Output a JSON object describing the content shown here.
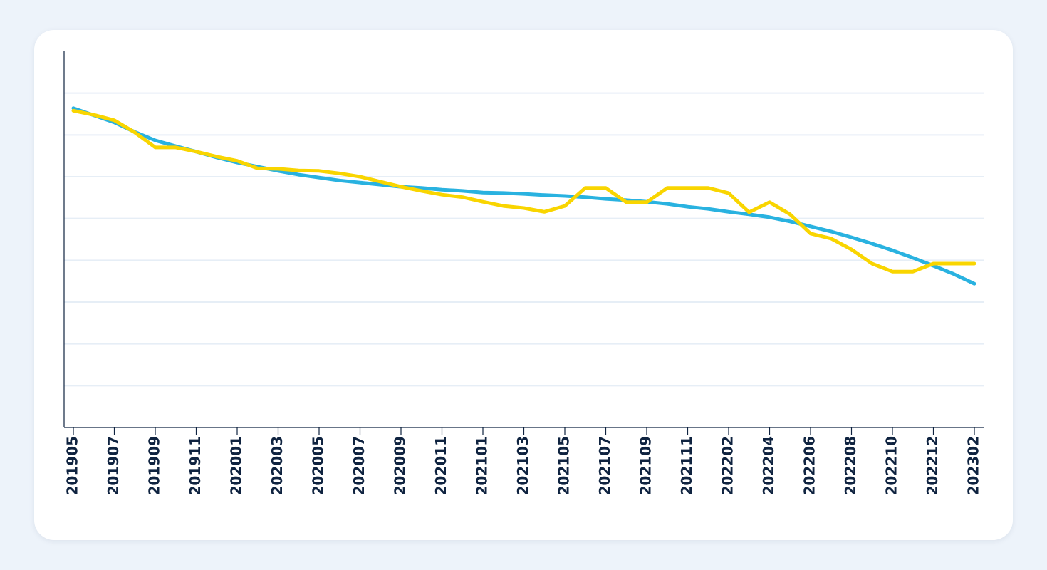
{
  "chart_data": {
    "type": "line",
    "categories": [
      "201905",
      null,
      "201907",
      null,
      "201909",
      null,
      "201911",
      null,
      "202001",
      null,
      "202003",
      null,
      "202005",
      null,
      "202007",
      null,
      "202009",
      null,
      "202011",
      null,
      "202101",
      null,
      "202103",
      null,
      "202105",
      null,
      "202107",
      null,
      "202109",
      null,
      "202111",
      null,
      "202202",
      null,
      "202204",
      null,
      "202206",
      null,
      "202208",
      null,
      "202210",
      null,
      "202212",
      null,
      "202302"
    ],
    "series": [
      {
        "color": "#29b2e0",
        "values": [
          7.64,
          7.47,
          7.3,
          7.07,
          6.87,
          6.73,
          6.6,
          6.46,
          6.34,
          6.24,
          6.14,
          6.05,
          5.98,
          5.91,
          5.86,
          5.81,
          5.76,
          5.73,
          5.69,
          5.66,
          5.62,
          5.61,
          5.59,
          5.56,
          5.54,
          5.51,
          5.47,
          5.44,
          5.4,
          5.35,
          5.28,
          5.23,
          5.16,
          5.1,
          5.03,
          4.93,
          4.81,
          4.69,
          4.55,
          4.4,
          4.24,
          4.06,
          3.87,
          3.67,
          3.44
        ]
      },
      {
        "color": "#f9d500",
        "values": [
          7.58,
          7.48,
          7.35,
          7.06,
          6.7,
          6.7,
          6.6,
          6.48,
          6.38,
          6.2,
          6.19,
          6.15,
          6.14,
          6.08,
          6.0,
          5.88,
          5.76,
          5.66,
          5.57,
          5.51,
          5.4,
          5.3,
          5.25,
          5.16,
          5.3,
          5.73,
          5.73,
          5.39,
          5.39,
          5.73,
          5.73,
          5.73,
          5.61,
          5.15,
          5.39,
          5.1,
          4.64,
          4.52,
          4.26,
          3.92,
          3.73,
          3.73,
          3.92,
          3.92,
          3.92
        ]
      }
    ],
    "ylim": [
      0,
      9
    ],
    "yticks": [
      1,
      2,
      3,
      4,
      5,
      6,
      7,
      8
    ],
    "grid": true
  }
}
